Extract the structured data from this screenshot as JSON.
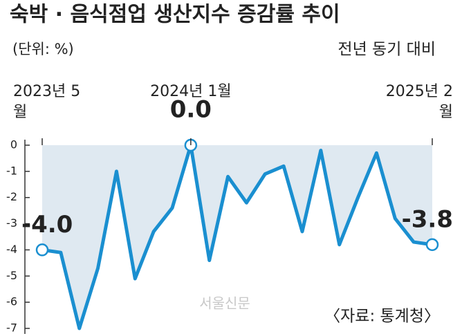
{
  "chart_data": {
    "type": "line",
    "title": "숙박 · 음식점업 생산지수 증감률 추이",
    "subtitle": "(단위: %)",
    "note": "전년 동기 대비",
    "source": "〈자료: 통계청〉",
    "watermark": "서울신문",
    "categories": [
      "2023년 5월",
      null,
      null,
      null,
      null,
      null,
      null,
      null,
      "2024년 1월",
      null,
      null,
      null,
      null,
      null,
      null,
      null,
      null,
      null,
      null,
      null,
      null,
      "2025년 2월"
    ],
    "values": [
      -4.0,
      -4.1,
      -7.0,
      -4.7,
      -1.0,
      -5.1,
      -3.3,
      -2.4,
      0.0,
      -4.4,
      -1.2,
      -2.2,
      -1.1,
      -0.8,
      -3.3,
      -0.2,
      -3.8,
      -2.0,
      -0.3,
      -2.8,
      -3.7,
      -3.8
    ],
    "value_labels": [
      "-4.0",
      null,
      null,
      null,
      null,
      null,
      null,
      null,
      "0.0",
      null,
      null,
      null,
      null,
      null,
      null,
      null,
      null,
      null,
      null,
      null,
      null,
      "-3.8"
    ],
    "color": "#1a8fd0",
    "area_color": "#dfe9f1",
    "ylim": [
      -7,
      0
    ],
    "yticks": [
      0,
      -1,
      -2,
      -3,
      -4,
      -5,
      -6,
      -7
    ]
  }
}
